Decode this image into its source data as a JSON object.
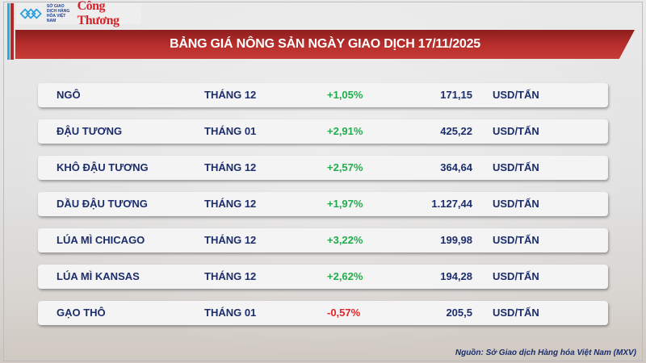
{
  "logos": {
    "mxv": "SỞ GIAO DỊCH HÀNG HÓA VIỆT NAM",
    "congthuong": "Công Thương"
  },
  "title": "BẢNG GIÁ NÔNG SẢN NGÀY GIAO DỊCH 17/11/2025",
  "colors": {
    "up": "#1fae4b",
    "down": "#e0262a",
    "text": "#1b2d6b",
    "banner": "#b52d2b"
  },
  "rows": [
    {
      "name": "NGÔ",
      "month": "THÁNG 12",
      "change": "+1,05%",
      "price": "171,15",
      "unit": "USD/TẤN",
      "dir": "up"
    },
    {
      "name": "ĐẬU TƯƠNG",
      "month": "THÁNG 01",
      "change": "+2,91%",
      "price": "425,22",
      "unit": "USD/TẤN",
      "dir": "up"
    },
    {
      "name": "KHÔ ĐẬU TƯƠNG",
      "month": "THÁNG 12",
      "change": "+2,57%",
      "price": "364,64",
      "unit": "USD/TẤN",
      "dir": "up"
    },
    {
      "name": "DẦU ĐẬU TƯƠNG",
      "month": "THÁNG 12",
      "change": "+1,97%",
      "price": "1.127,44",
      "unit": "USD/TẤN",
      "dir": "up"
    },
    {
      "name": "LÚA MÌ CHICAGO",
      "month": "THÁNG 12",
      "change": "+3,22%",
      "price": "199,98",
      "unit": "USD/TẤN",
      "dir": "up"
    },
    {
      "name": "LÚA MÌ KANSAS",
      "month": "THÁNG 12",
      "change": "+2,62%",
      "price": "194,28",
      "unit": "USD/TẤN",
      "dir": "up"
    },
    {
      "name": "GẠO THÔ",
      "month": "THÁNG 01",
      "change": "-0,57%",
      "price": "205,5",
      "unit": "USD/TẤN",
      "dir": "down"
    }
  ],
  "source": "Nguồn: Sở Giao dịch Hàng hóa Việt Nam (MXV)"
}
